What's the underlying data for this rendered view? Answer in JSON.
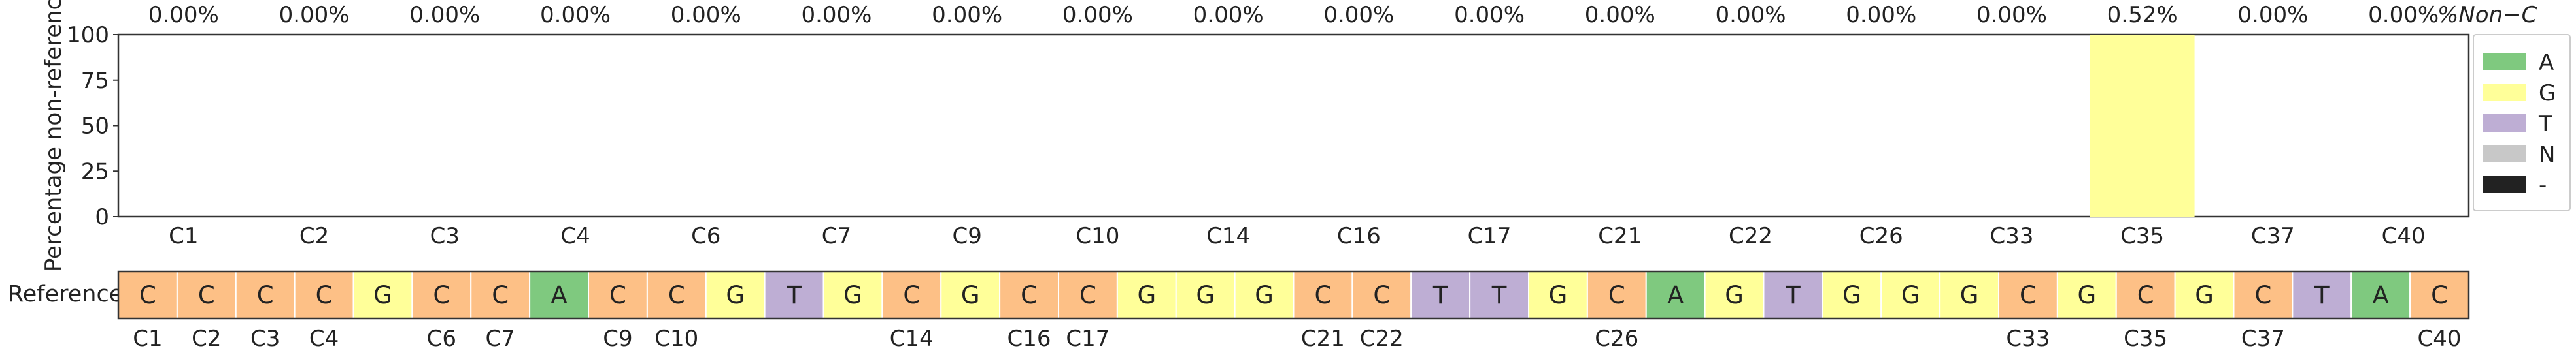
{
  "chart_data": {
    "type": "bar",
    "ylabel": "Percentage non-reference",
    "ylim": [
      0,
      100
    ],
    "yticks": [
      0,
      25,
      50,
      75,
      100
    ],
    "categories": [
      "C1",
      "C2",
      "C3",
      "C4",
      "C6",
      "C7",
      "C9",
      "C10",
      "C14",
      "C16",
      "C17",
      "C21",
      "C22",
      "C26",
      "C33",
      "C35",
      "C37",
      "C40"
    ],
    "top_axis_label": "%Non−C",
    "percent_labels": [
      "0.00%",
      "0.00%",
      "0.00%",
      "0.00%",
      "0.00%",
      "0.00%",
      "0.00%",
      "0.00%",
      "0.00%",
      "0.00%",
      "0.00%",
      "0.00%",
      "0.00%",
      "0.00%",
      "0.00%",
      "0.52%",
      "0.00%",
      "0.00%"
    ],
    "series": [
      {
        "name": "A",
        "color": "#7fc97f",
        "values": [
          0,
          0,
          0,
          0,
          0,
          0,
          0,
          0,
          0,
          0,
          0,
          0,
          0,
          0,
          0,
          0,
          0,
          0
        ]
      },
      {
        "name": "G",
        "color": "#ffff99",
        "values": [
          0,
          0,
          0,
          0,
          0,
          0,
          0,
          0,
          0,
          0,
          0,
          0,
          0,
          0,
          0,
          100,
          0,
          0
        ]
      },
      {
        "name": "T",
        "color": "#beaed4",
        "values": [
          0,
          0,
          0,
          0,
          0,
          0,
          0,
          0,
          0,
          0,
          0,
          0,
          0,
          0,
          0,
          0,
          0,
          0
        ]
      },
      {
        "name": "N",
        "color": "#c8c8c8",
        "values": [
          0,
          0,
          0,
          0,
          0,
          0,
          0,
          0,
          0,
          0,
          0,
          0,
          0,
          0,
          0,
          0,
          0,
          0
        ]
      },
      {
        "name": "-",
        "color": "#222222",
        "values": [
          0,
          0,
          0,
          0,
          0,
          0,
          0,
          0,
          0,
          0,
          0,
          0,
          0,
          0,
          0,
          0,
          0,
          0
        ]
      }
    ],
    "legend_position": "right",
    "reference": {
      "label": "Reference",
      "sequence": [
        "C",
        "C",
        "C",
        "C",
        "G",
        "C",
        "C",
        "A",
        "C",
        "C",
        "G",
        "T",
        "G",
        "C",
        "G",
        "C",
        "C",
        "G",
        "G",
        "G",
        "C",
        "C",
        "T",
        "T",
        "G",
        "C",
        "A",
        "G",
        "T",
        "G",
        "G",
        "G",
        "C",
        "G",
        "C",
        "G",
        "C",
        "T",
        "A",
        "C"
      ],
      "position_labels": [
        "C1",
        "C2",
        "C3",
        "C4",
        "",
        "C6",
        "C7",
        "",
        "C9",
        "C10",
        "",
        "",
        "",
        "C14",
        "",
        "C16",
        "C17",
        "",
        "",
        "",
        "C21",
        "C22",
        "",
        "",
        "",
        "C26",
        "",
        "",
        "",
        "",
        "",
        "",
        "C33",
        "",
        "C35",
        "",
        "C37",
        "",
        "",
        "C40"
      ],
      "base_colors": {
        "A": "#7fc97f",
        "C": "#fdc086",
        "G": "#ffff99",
        "T": "#beaed4"
      }
    }
  }
}
